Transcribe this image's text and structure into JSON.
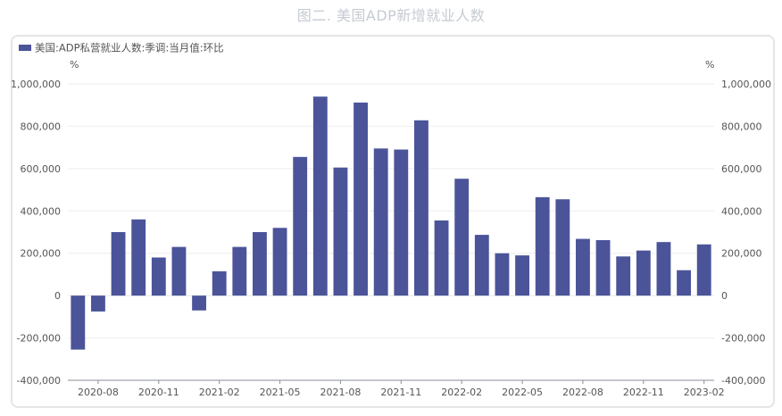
{
  "figure_title": "图二. 美国ADP新增就业人数",
  "colors": {
    "bar": "#4b5499",
    "axis": "#8a8f99",
    "grid": "#eeeeee",
    "text": "#555555",
    "title": "#c6cbd3"
  },
  "chart_data": {
    "type": "bar",
    "legend": {
      "label": "美国:ADP私营就业人数:季调:当月值:环比",
      "position": "top-left"
    },
    "unit_left": "%",
    "unit_right": "%",
    "ylim": [
      -400000,
      1000000
    ],
    "yticks": [
      -400000,
      -200000,
      0,
      200000,
      400000,
      600000,
      800000,
      1000000
    ],
    "ytick_labels": [
      "-400,000",
      "-200,000",
      "0",
      "200,000",
      "400,000",
      "600,000",
      "800,000",
      "1,000,000"
    ],
    "grid": true,
    "x_tick_labels": [
      {
        "index": 1,
        "label": "2020-08"
      },
      {
        "index": 4,
        "label": "2020-11"
      },
      {
        "index": 7,
        "label": "2021-02"
      },
      {
        "index": 10,
        "label": "2021-05"
      },
      {
        "index": 13,
        "label": "2021-08"
      },
      {
        "index": 16,
        "label": "2021-11"
      },
      {
        "index": 19,
        "label": "2022-02"
      },
      {
        "index": 22,
        "label": "2022-05"
      },
      {
        "index": 25,
        "label": "2022-08"
      },
      {
        "index": 28,
        "label": "2022-11"
      },
      {
        "index": 31,
        "label": "2023-02"
      }
    ],
    "categories": [
      "2020-07",
      "2020-08",
      "2020-09",
      "2020-10",
      "2020-11",
      "2020-12",
      "2021-01",
      "2021-02",
      "2021-03",
      "2021-04",
      "2021-05",
      "2021-06",
      "2021-07",
      "2021-08",
      "2021-09",
      "2021-10",
      "2021-11",
      "2021-12",
      "2022-01",
      "2022-02",
      "2022-03",
      "2022-04",
      "2022-05",
      "2022-06",
      "2022-07",
      "2022-08",
      "2022-09",
      "2022-10",
      "2022-11",
      "2022-12",
      "2023-01",
      "2023-02"
    ],
    "values": [
      -255000,
      -75000,
      300000,
      360000,
      180000,
      230000,
      -70000,
      115000,
      230000,
      300000,
      320000,
      655000,
      940000,
      605000,
      912000,
      695000,
      690000,
      828000,
      355000,
      552000,
      287000,
      200000,
      190000,
      465000,
      455000,
      268000,
      262000,
      185000,
      213000,
      253000,
      120000,
      242000
    ]
  }
}
